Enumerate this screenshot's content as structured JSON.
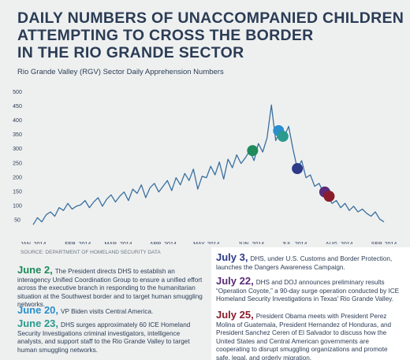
{
  "chart_data": {
    "type": "line",
    "title_lines": [
      "DAILY NUMBERS OF UNACCOMPANIED CHILDREN",
      "ATTEMPTING TO CROSS THE BORDER",
      "IN THE RIO GRANDE SECTOR"
    ],
    "subtitle": "Rio Grande Valley (RGV) Sector Daily Apprehension Numbers",
    "source": "SOURCE: DEPARTMENT OF HOMELAND SECURITY DATA",
    "color": "#3a6f9e",
    "x": [
      0,
      3,
      6,
      9,
      12,
      15,
      18,
      21,
      24,
      27,
      30,
      33,
      36,
      39,
      42,
      45,
      48,
      51,
      54,
      57,
      60,
      63,
      66,
      69,
      72,
      75,
      78,
      81,
      84,
      87,
      90,
      93,
      96,
      99,
      102,
      105,
      108,
      111,
      114,
      117,
      120,
      123,
      126,
      129,
      132,
      135,
      138,
      141,
      144,
      147,
      150,
      153,
      156,
      159,
      162,
      165,
      168,
      171,
      174,
      177,
      180,
      183,
      186,
      189,
      192,
      195,
      198,
      201,
      204,
      207,
      210,
      213,
      216,
      219,
      222,
      225,
      228,
      231,
      234,
      237,
      240,
      243
    ],
    "values": [
      35,
      60,
      45,
      70,
      80,
      65,
      95,
      85,
      110,
      90,
      100,
      105,
      120,
      95,
      115,
      130,
      100,
      125,
      140,
      115,
      135,
      150,
      120,
      160,
      145,
      175,
      130,
      165,
      180,
      150,
      170,
      190,
      155,
      200,
      175,
      215,
      190,
      230,
      160,
      205,
      200,
      240,
      210,
      255,
      195,
      265,
      235,
      280,
      250,
      270,
      295,
      260,
      320,
      290,
      340,
      455,
      330,
      365,
      345,
      380,
      300,
      232,
      260,
      200,
      210,
      170,
      180,
      150,
      135,
      110,
      120,
      95,
      110,
      85,
      100,
      80,
      90,
      75,
      65,
      80,
      55,
      45
    ],
    "xlim": [
      0,
      243
    ],
    "xticks": [
      {
        "value": 0,
        "label": "JAN, 2014"
      },
      {
        "value": 31,
        "label": "FEB, 2014"
      },
      {
        "value": 59,
        "label": "MAR, 2014"
      },
      {
        "value": 90,
        "label": "APR, 2014"
      },
      {
        "value": 120,
        "label": "MAY, 2014"
      },
      {
        "value": 151,
        "label": "JUN, 2014"
      },
      {
        "value": 181,
        "label": "JUL, 2014"
      },
      {
        "value": 212,
        "label": "AUG, 2014"
      },
      {
        "value": 243,
        "label": "SEP, 2014"
      }
    ],
    "ylim": [
      0,
      500
    ],
    "yticks": [
      50,
      100,
      150,
      200,
      250,
      300,
      350,
      400,
      450,
      500
    ],
    "events": [
      {
        "date": "June 2,",
        "x": 152,
        "value": 295,
        "color": "#1f8a5b",
        "text": "The President directs DHS to establish an interagency Unified Coordination Group to ensure a unified effort across the executive branch in responding to the humanitarian situation at the Southwest border and to target human smuggling networks."
      },
      {
        "date": "June 20,",
        "x": 170,
        "value": 365,
        "color": "#2a8fca",
        "text": "VP Biden visits Central America."
      },
      {
        "date": "June 23,",
        "x": 173,
        "value": 345,
        "color": "#2a9a8c",
        "text": "DHS surges approximately 60 ICE Homeland Security Investigations criminal investigators, intelligence analysts, and support staff to the Rio Grande Valley to target human smuggling networks."
      },
      {
        "date": "July 3,",
        "x": 183,
        "value": 232,
        "color": "#2c3a88",
        "text": "DHS, under U.S. Customs and Border Protection, launches the Dangers Awareness Campaign."
      },
      {
        "date": "July 22,",
        "x": 202,
        "value": 150,
        "color": "#5a2b78",
        "text": "DHS and DOJ announces preliminary results “Operation Coyote,” a 90-day surge operation conducted by ICE Homeland Security Investigations in Texas' Rio Grande Valley."
      },
      {
        "date": "July 25,",
        "x": 205,
        "value": 135,
        "color": "#8a1c2c",
        "text": "President Obama meets with President Perez Molina of Guatemala, President Hernandez of Honduras, and President Sanchez Ceren of El Salvador to discuss how the United States and Central American governments are cooperating to disrupt smuggling organizations and promote safe, legal, and orderly migration."
      }
    ]
  }
}
